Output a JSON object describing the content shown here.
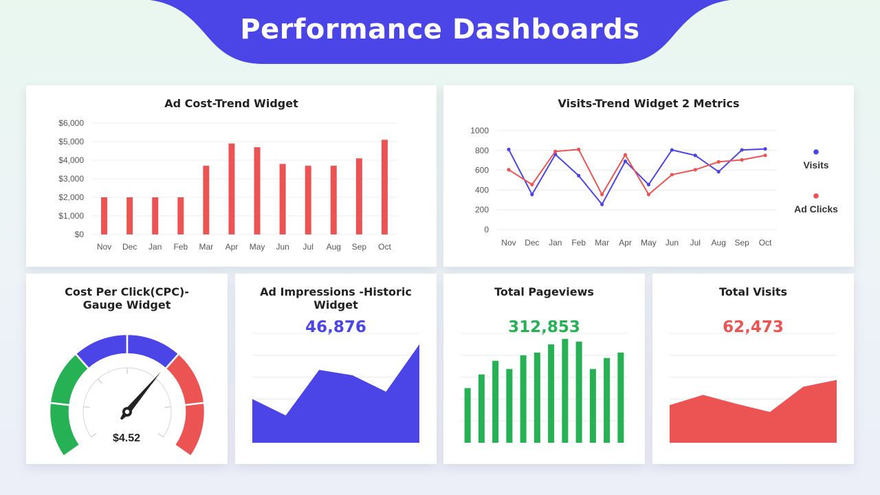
{
  "header": {
    "title": "Performance Dashboards"
  },
  "colors": {
    "accent": "#4b44e6",
    "red": "#eb5453",
    "green": "#26b155",
    "grid": "#ececec",
    "axis_text": "#555555"
  },
  "chart_data": [
    {
      "id": "ad_cost",
      "type": "bar",
      "title": "Ad Cost-Trend Widget",
      "categories": [
        "Nov",
        "Dec",
        "Jan",
        "Feb",
        "Mar",
        "Apr",
        "May",
        "Jun",
        "Jul",
        "Aug",
        "Sep",
        "Oct"
      ],
      "values": [
        2000,
        2000,
        2000,
        2000,
        3700,
        4900,
        4700,
        3800,
        3700,
        3700,
        4100,
        5100
      ],
      "yticks": [
        "$0",
        "$1,000",
        "$2,000",
        "$3,000",
        "$4,000",
        "$5,000",
        "$6,000"
      ],
      "ylim": [
        0,
        6000
      ],
      "color": "#eb5453"
    },
    {
      "id": "visits_trend",
      "type": "line",
      "title": "Visits-Trend Widget 2 Metrics",
      "categories": [
        "Nov",
        "Dec",
        "Jan",
        "Feb",
        "Mar",
        "Apr",
        "May",
        "Jun",
        "Jul",
        "Aug",
        "Sep",
        "Oct"
      ],
      "yticks": [
        "0",
        "200",
        "400",
        "600",
        "800",
        "1000"
      ],
      "ylim": [
        0,
        1000
      ],
      "series": [
        {
          "name": "Visits",
          "color": "#4b44e6",
          "values": [
            810,
            355,
            760,
            545,
            255,
            690,
            455,
            805,
            750,
            585,
            805,
            815
          ]
        },
        {
          "name": "Ad Clicks",
          "color": "#eb5453",
          "values": [
            605,
            455,
            790,
            810,
            355,
            755,
            355,
            555,
            605,
            685,
            705,
            750
          ]
        }
      ],
      "legend": "right"
    },
    {
      "id": "cpc",
      "type": "gauge",
      "title_lines": [
        "Cost Per Click(CPC)-",
        "Gauge Widget"
      ],
      "value_label": "$4.52",
      "needle_fraction": 0.66,
      "bands": [
        {
          "from": 0.0,
          "to": 0.1667,
          "color": "#26b155"
        },
        {
          "from": 0.1667,
          "to": 0.3333,
          "color": "#26b155"
        },
        {
          "from": 0.3333,
          "to": 0.5,
          "color": "#4b44e6"
        },
        {
          "from": 0.5,
          "to": 0.6667,
          "color": "#4b44e6"
        },
        {
          "from": 0.6667,
          "to": 0.8333,
          "color": "#eb5453"
        },
        {
          "from": 0.8333,
          "to": 1.0,
          "color": "#eb5453"
        }
      ]
    },
    {
      "id": "impressions",
      "type": "area",
      "title_lines": [
        "Ad Impressions -Historic",
        "Widget"
      ],
      "total_label": "46,876",
      "values": [
        48,
        30,
        80,
        74,
        56,
        108
      ],
      "ylim": [
        0,
        120
      ],
      "color": "#4b44e6"
    },
    {
      "id": "pageviews",
      "type": "bar",
      "title": "Total Pageviews",
      "total_label": "312,853",
      "values": [
        80,
        100,
        120,
        108,
        128,
        132,
        144,
        152,
        148,
        108,
        124,
        132
      ],
      "ylim": [
        0,
        160
      ],
      "color": "#26b155"
    },
    {
      "id": "visits_total",
      "type": "area",
      "title": "Total Visits",
      "total_label": "62,473",
      "values": [
        55,
        70,
        57,
        45,
        82,
        92
      ],
      "ylim": [
        0,
        160
      ],
      "color": "#eb5453"
    }
  ]
}
